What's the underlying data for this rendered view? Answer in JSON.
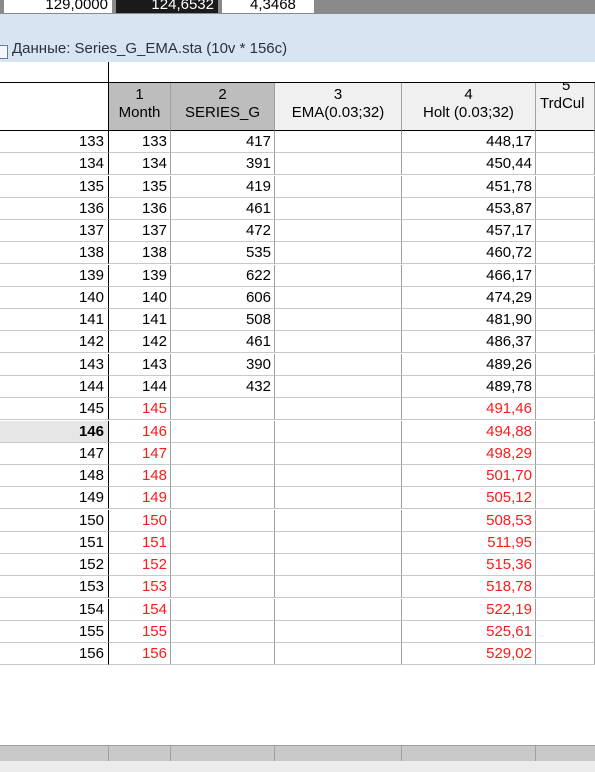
{
  "previous_window": {
    "cells": [
      "129,0000",
      "124,6532",
      "4,3468"
    ]
  },
  "window": {
    "title": "Данные: Series_G_EMA.sta (10v * 156c)",
    "icon": "spreadsheet-icon"
  },
  "columns": [
    {
      "num": "1",
      "name": "Month",
      "selected": true
    },
    {
      "num": "2",
      "name": "SERIES_G",
      "selected": true
    },
    {
      "num": "3",
      "name": "EMA(0.03;32)",
      "selected": false
    },
    {
      "num": "4",
      "name": "Holt (0.03;32)",
      "selected": false
    },
    {
      "num": "5",
      "name": "TrdCul",
      "selected": false
    }
  ],
  "rows": [
    {
      "id": "133",
      "month": "133",
      "series": "417",
      "ema": "",
      "holt": "448,17",
      "forecast": false
    },
    {
      "id": "134",
      "month": "134",
      "series": "391",
      "ema": "",
      "holt": "450,44",
      "forecast": false
    },
    {
      "id": "135",
      "month": "135",
      "series": "419",
      "ema": "",
      "holt": "451,78",
      "forecast": false
    },
    {
      "id": "136",
      "month": "136",
      "series": "461",
      "ema": "",
      "holt": "453,87",
      "forecast": false
    },
    {
      "id": "137",
      "month": "137",
      "series": "472",
      "ema": "",
      "holt": "457,17",
      "forecast": false
    },
    {
      "id": "138",
      "month": "138",
      "series": "535",
      "ema": "",
      "holt": "460,72",
      "forecast": false
    },
    {
      "id": "139",
      "month": "139",
      "series": "622",
      "ema": "",
      "holt": "466,17",
      "forecast": false
    },
    {
      "id": "140",
      "month": "140",
      "series": "606",
      "ema": "",
      "holt": "474,29",
      "forecast": false
    },
    {
      "id": "141",
      "month": "141",
      "series": "508",
      "ema": "",
      "holt": "481,90",
      "forecast": false
    },
    {
      "id": "142",
      "month": "142",
      "series": "461",
      "ema": "",
      "holt": "486,37",
      "forecast": false
    },
    {
      "id": "143",
      "month": "143",
      "series": "390",
      "ema": "",
      "holt": "489,26",
      "forecast": false
    },
    {
      "id": "144",
      "month": "144",
      "series": "432",
      "ema": "",
      "holt": "489,78",
      "forecast": false
    },
    {
      "id": "145",
      "month": "145",
      "series": "",
      "ema": "",
      "holt": "491,46",
      "forecast": true
    },
    {
      "id": "146",
      "month": "146",
      "series": "",
      "ema": "",
      "holt": "494,88",
      "forecast": true,
      "active": true
    },
    {
      "id": "147",
      "month": "147",
      "series": "",
      "ema": "",
      "holt": "498,29",
      "forecast": true
    },
    {
      "id": "148",
      "month": "148",
      "series": "",
      "ema": "",
      "holt": "501,70",
      "forecast": true
    },
    {
      "id": "149",
      "month": "149",
      "series": "",
      "ema": "",
      "holt": "505,12",
      "forecast": true
    },
    {
      "id": "150",
      "month": "150",
      "series": "",
      "ema": "",
      "holt": "508,53",
      "forecast": true
    },
    {
      "id": "151",
      "month": "151",
      "series": "",
      "ema": "",
      "holt": "511,95",
      "forecast": true
    },
    {
      "id": "152",
      "month": "152",
      "series": "",
      "ema": "",
      "holt": "515,36",
      "forecast": true
    },
    {
      "id": "153",
      "month": "153",
      "series": "",
      "ema": "",
      "holt": "518,78",
      "forecast": true
    },
    {
      "id": "154",
      "month": "154",
      "series": "",
      "ema": "",
      "holt": "522,19",
      "forecast": true
    },
    {
      "id": "155",
      "month": "155",
      "series": "",
      "ema": "",
      "holt": "525,61",
      "forecast": true
    },
    {
      "id": "156",
      "month": "156",
      "series": "",
      "ema": "",
      "holt": "529,02",
      "forecast": true
    }
  ],
  "colors": {
    "forecast_text": "#ff1a1a",
    "title_bar": "#d7e4f2",
    "selected_header": "#bdbdbd"
  }
}
